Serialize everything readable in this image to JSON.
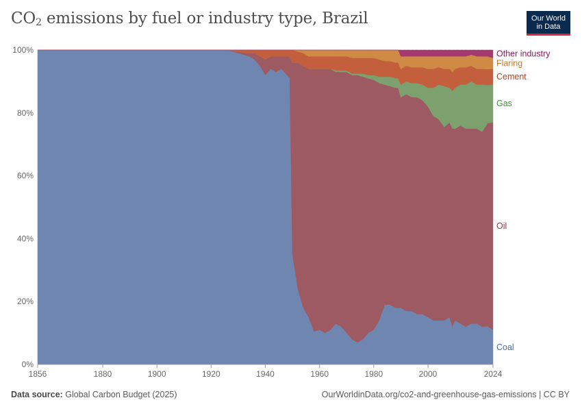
{
  "header": {
    "title_prefix": "CO",
    "title_sub": "2",
    "title_suffix": " emissions by fuel or industry type, Brazil",
    "logo_line1": "Our World",
    "logo_line2": "in Data"
  },
  "footer": {
    "source_label": "Data source:",
    "source_value": "Global Carbon Budget (2025)",
    "link": "OurWorldinData.org/co2-and-greenhouse-gas-emissions | CC BY"
  },
  "colors": {
    "Coal": "#6f86b0",
    "Oil": "#9e5a63",
    "Gas": "#7ca06e",
    "Cement": "#c45f3d",
    "Flaring": "#cf8a45",
    "Other industry": "#a53a72"
  },
  "label_colors": {
    "Coal": "#4f6ea3",
    "Oil": "#8a3a44",
    "Gas": "#4e8a41",
    "Cement": "#b0431f",
    "Flaring": "#c47a2c",
    "Other industry": "#8a1a5c"
  },
  "chart_data": {
    "type": "area",
    "stacked": "percent",
    "title": "CO₂ emissions by fuel or industry type, Brazil",
    "xlim": [
      1856,
      2024
    ],
    "ylim": [
      0,
      100
    ],
    "x_ticks": [
      "1856",
      "1880",
      "1900",
      "1920",
      "1940",
      "1960",
      "1980",
      "2000",
      "2024"
    ],
    "y_ticks": [
      "0%",
      "20%",
      "40%",
      "60%",
      "80%",
      "100%"
    ],
    "grid": "horizontal dashed",
    "x": [
      1856,
      1926,
      1930,
      1934,
      1936,
      1938,
      1940,
      1942,
      1944,
      1946,
      1948,
      1949,
      1950,
      1952,
      1954,
      1956,
      1958,
      1960,
      1962,
      1964,
      1966,
      1968,
      1970,
      1972,
      1974,
      1976,
      1978,
      1980,
      1982,
      1984,
      1986,
      1988,
      1989,
      1990,
      1992,
      1994,
      1996,
      1998,
      2000,
      2002,
      2004,
      2006,
      2008,
      2009,
      2010,
      2012,
      2014,
      2016,
      2018,
      2020,
      2022,
      2024
    ],
    "series": [
      {
        "name": "Coal",
        "values": [
          100,
          100,
          99,
          98,
          97,
          95,
          92,
          94,
          93,
          94,
          92,
          91,
          35,
          24,
          18,
          15,
          10.5,
          11,
          10,
          11,
          13,
          12,
          10,
          8,
          7,
          8,
          10,
          11,
          14,
          19,
          19,
          18,
          18,
          18,
          17,
          17,
          16,
          16,
          15,
          14,
          14,
          14,
          15,
          12,
          14,
          13,
          12,
          13,
          13,
          12,
          12,
          11
        ]
      },
      {
        "name": "Oil",
        "values": [
          0,
          0,
          0.5,
          1,
          2,
          3,
          5,
          4,
          5,
          4,
          6,
          7,
          61,
          72,
          77,
          79,
          83.5,
          83,
          84,
          83,
          80.5,
          81,
          83,
          84,
          85,
          83.5,
          81,
          79.5,
          75.5,
          70,
          69.5,
          70,
          70,
          67,
          69,
          68,
          69,
          68,
          67,
          65,
          64,
          61.5,
          62,
          63,
          61,
          63,
          63,
          62,
          62,
          62,
          64,
          66
        ]
      },
      {
        "name": "Gas",
        "values": [
          0,
          0,
          0,
          0,
          0,
          0,
          0,
          0,
          0,
          0,
          0,
          0,
          0,
          0,
          0,
          0,
          0,
          0,
          0,
          0,
          0.5,
          0.5,
          0.5,
          0.5,
          0.5,
          1,
          1,
          1.5,
          2,
          2.5,
          3,
          3,
          3,
          4,
          4,
          4.5,
          4.5,
          5,
          6,
          9,
          11,
          13,
          11,
          12,
          13,
          13,
          14,
          15,
          14,
          15,
          12,
          12
        ]
      },
      {
        "name": "Cement",
        "values": [
          0,
          0,
          0.5,
          1,
          1,
          2,
          3,
          2,
          2,
          2,
          2,
          2,
          4,
          3.5,
          4,
          4,
          4,
          4,
          4,
          4,
          4.5,
          4.5,
          4.5,
          5,
          5,
          5,
          5.5,
          5.5,
          5.5,
          5,
          5,
          5,
          5,
          5,
          5,
          5,
          5,
          5.5,
          6,
          6,
          5.5,
          5.5,
          6,
          6,
          6,
          5.5,
          5.5,
          5,
          5,
          5,
          5,
          5
        ]
      },
      {
        "name": "Flaring",
        "values": [
          0,
          0,
          0,
          0,
          0,
          0,
          0,
          0,
          0,
          0,
          0,
          0,
          0,
          0.5,
          1,
          2,
          2,
          2,
          2,
          2,
          2,
          2,
          2,
          2.5,
          2.5,
          2.5,
          2.5,
          2.5,
          3,
          3.5,
          3.5,
          4,
          4,
          4,
          3,
          3.5,
          3.5,
          3.5,
          4,
          4,
          3.5,
          4,
          4,
          5,
          4,
          3.5,
          3.5,
          3.5,
          4,
          4,
          4,
          3.5
        ]
      },
      {
        "name": "Other industry",
        "values": [
          0,
          0,
          0,
          0,
          0,
          0,
          0,
          0,
          0,
          0,
          0,
          0,
          0,
          0,
          0,
          0,
          0,
          0,
          0,
          0,
          0,
          0,
          0,
          0,
          0,
          0,
          0,
          0,
          0,
          0,
          0,
          0,
          0,
          2,
          2,
          2,
          2,
          2,
          2,
          2,
          2,
          2,
          2,
          2,
          2,
          2,
          2,
          1.5,
          2,
          2,
          2,
          2.5
        ]
      }
    ]
  }
}
